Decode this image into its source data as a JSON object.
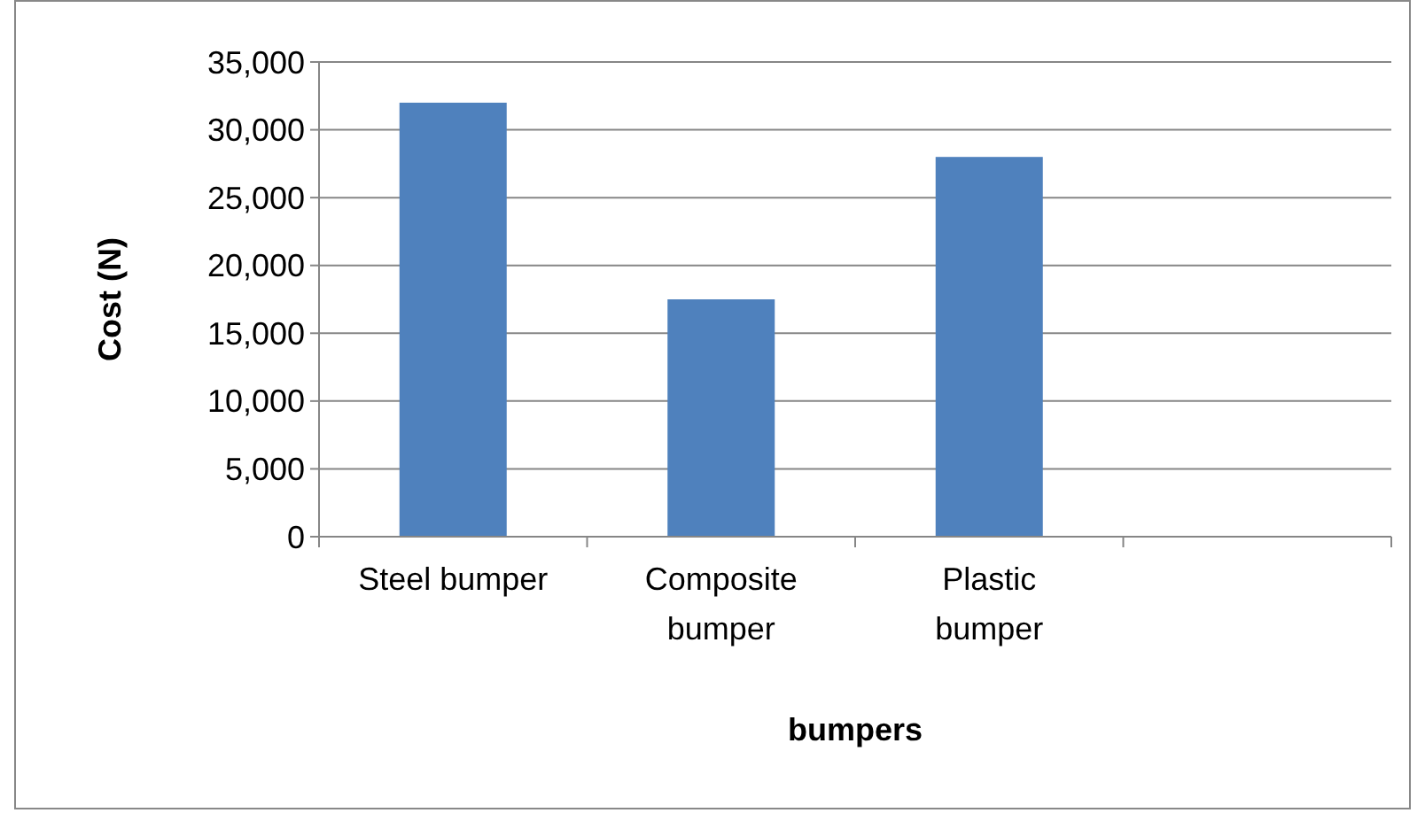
{
  "chart_data": {
    "type": "bar",
    "xlabel": "bumpers",
    "ylabel": "Cost (N)",
    "categories": [
      "Steel bumper",
      "Composite bumper",
      "Plastic bumper",
      null
    ],
    "values": [
      32000,
      17500,
      28000,
      null
    ],
    "color": "#4f81bd",
    "ylim": [
      0,
      35000
    ],
    "yticks": [
      0,
      {
        "value": 5000,
        "label": "5,000"
      },
      {
        "value": 10000,
        "label": "10,000"
      },
      {
        "value": 15000,
        "label": "15,000"
      },
      {
        "value": 20000,
        "label": "20,000"
      },
      {
        "value": 25000,
        "label": "25,000"
      },
      {
        "value": 30000,
        "label": "30,000"
      },
      {
        "value": 35000,
        "label": "35,000"
      }
    ],
    "grid": "y"
  }
}
